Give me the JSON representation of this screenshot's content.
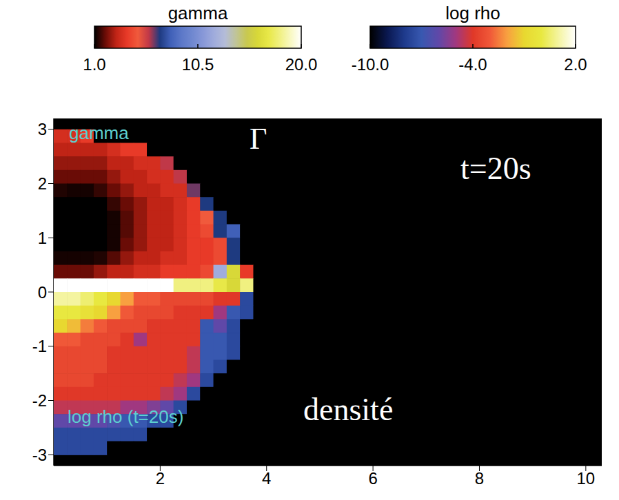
{
  "chart_data": {
    "type": "heatmap",
    "xlim": [
      0,
      10.3
    ],
    "ylim": [
      -3.2,
      3.2
    ],
    "xticks": [
      2,
      4,
      6,
      8,
      10
    ],
    "yticks": [
      -3,
      -2,
      -1,
      0,
      1,
      2,
      3
    ],
    "grid": false,
    "annotations": [
      "Γ",
      "t=20s",
      "densité"
    ],
    "x": [
      0.125,
      0.375,
      0.625,
      0.875,
      1.125,
      1.375,
      1.625,
      1.875,
      2.125,
      2.375,
      2.625,
      2.875,
      3.125,
      3.375,
      3.625,
      3.875
    ],
    "panels": [
      {
        "label": "gamma",
        "y": [
          2.875,
          2.625,
          2.375,
          2.125,
          1.875,
          1.625,
          1.375,
          1.125,
          0.875,
          0.625,
          0.375,
          0.125
        ],
        "values": [
          [
            3.5,
            3.5,
            4,
            1,
            1,
            1,
            1,
            1,
            1,
            1,
            1,
            1,
            1,
            1,
            1,
            1
          ],
          [
            3,
            3,
            3,
            3,
            3.5,
            4,
            4,
            1,
            1,
            1,
            1,
            1,
            1,
            1,
            1,
            1
          ],
          [
            2.5,
            2.5,
            2.5,
            2.5,
            3,
            3,
            3.5,
            3.5,
            6,
            1,
            1,
            1,
            1,
            1,
            1,
            1
          ],
          [
            2,
            2,
            2,
            2,
            2.5,
            3,
            3,
            3.5,
            3.5,
            6,
            1,
            1,
            1,
            1,
            1,
            1
          ],
          [
            1.3,
            1.2,
            1.2,
            1.5,
            2,
            2.5,
            3,
            3,
            3.5,
            3.5,
            6.5,
            1,
            1,
            1,
            1,
            1
          ],
          [
            1,
            1,
            1,
            1,
            1.5,
            2,
            2.5,
            3,
            3,
            3.5,
            4,
            7,
            1,
            1,
            1,
            1
          ],
          [
            1,
            1,
            1,
            1,
            1.2,
            1.8,
            2.5,
            3,
            3,
            3.5,
            4,
            5,
            7,
            1,
            1,
            1
          ],
          [
            1,
            1,
            1,
            1,
            1.2,
            1.8,
            2.5,
            3,
            3,
            3.5,
            4,
            4.5,
            7,
            8,
            1,
            1
          ],
          [
            1,
            1,
            1,
            1,
            1.2,
            2,
            2.5,
            3,
            3,
            3.5,
            4,
            4,
            4.5,
            7,
            1,
            1
          ],
          [
            1.2,
            1.2,
            1.2,
            1.3,
            1.8,
            2.5,
            3,
            3,
            3.5,
            3.5,
            4,
            4,
            4.5,
            7,
            1,
            1
          ],
          [
            2,
            2,
            2,
            2.5,
            3,
            3,
            3.5,
            3.5,
            4,
            4,
            4,
            4.5,
            12,
            16,
            4,
            1
          ],
          [
            20,
            20,
            20,
            20,
            20,
            20,
            20,
            20,
            20,
            18,
            18,
            18,
            17,
            16,
            18,
            1
          ]
        ],
        "colorbar": {
          "label": "gamma",
          "range": [
            1,
            20
          ],
          "ticks": [
            {
              "value": 1,
              "label": "1.0"
            },
            10.5,
            {
              "value": 20,
              "label": "20.0"
            }
          ],
          "colors": [
            "#000000",
            "#6a0c06",
            "#c02416",
            "#e83a28",
            "#f05a3c",
            "#c03848",
            "#1e3a80",
            "#4060b8",
            "#5c78c8",
            "#7088d0",
            "#8898d8",
            "#a0acdc",
            "#b4bcd8",
            "#c0c498",
            "#c8c850",
            "#d8d838",
            "#e8e848",
            "#f0f080",
            "#f8f8c0",
            "#ffffff"
          ]
        }
      },
      {
        "label": "log rho (t=20s)",
        "y": [
          -0.125,
          -0.375,
          -0.625,
          -0.875,
          -1.125,
          -1.375,
          -1.625,
          -1.875,
          -2.125,
          -2.375,
          -2.625,
          -2.875
        ],
        "values": [
          [
            1,
            1,
            0.5,
            0,
            -1,
            -2,
            -3,
            -3,
            -3.5,
            -3.5,
            -3.5,
            -3.5,
            -4,
            -4,
            -7.5,
            -10
          ],
          [
            0,
            0,
            -0.5,
            -1,
            -2,
            -3,
            -3.5,
            -3.5,
            -3.5,
            -4,
            -4,
            -4,
            -5,
            -7,
            -7.5,
            -10
          ],
          [
            -1,
            -1.5,
            -2.5,
            -3,
            -3.5,
            -3.5,
            -3.5,
            -4,
            -4,
            -4,
            -4,
            -7,
            -6,
            -7.5,
            -10,
            -10
          ],
          [
            -3,
            -3,
            -3.5,
            -3.5,
            -3.5,
            -4,
            -5,
            -4,
            -4,
            -4,
            -4,
            -7,
            -7,
            -7.5,
            -10,
            -10
          ],
          [
            -3.5,
            -3.5,
            -3.5,
            -3.5,
            -4,
            -4,
            -4,
            -4,
            -4,
            -4,
            -4.5,
            -7,
            -7,
            -7.5,
            -10,
            -10
          ],
          [
            -3.5,
            -3.5,
            -3.5,
            -3.5,
            -4,
            -4,
            -4,
            -4,
            -4,
            -4,
            -4.5,
            -7,
            -7.5,
            -10,
            -10,
            -10
          ],
          [
            -3.5,
            -3.5,
            -3.5,
            -4,
            -4,
            -4,
            -4,
            -4,
            -4,
            -4.5,
            -5,
            -7.5,
            -10,
            -10,
            -10,
            -10
          ],
          [
            -4,
            -4,
            -4,
            -4,
            -4,
            -4,
            -4,
            -4,
            -4.5,
            -5,
            -7.5,
            -10,
            -10,
            -10,
            -10,
            -10
          ],
          [
            -4.5,
            -4.5,
            -4.5,
            -4.5,
            -4.5,
            -5,
            -5,
            -5.5,
            -6,
            -7.5,
            -10,
            -10,
            -10,
            -10,
            -10,
            -10
          ],
          [
            -6,
            -6,
            -6,
            -6,
            -6.5,
            -7,
            -7,
            -7.5,
            -7.5,
            -10,
            -10,
            -10,
            -10,
            -10,
            -10,
            -10
          ],
          [
            -7.5,
            -7.5,
            -7.5,
            -7.5,
            -7.5,
            -7.5,
            -7.5,
            -10,
            -10,
            -10,
            -10,
            -10,
            -10,
            -10,
            -10,
            -10
          ],
          [
            -7.5,
            -7.5,
            -7.5,
            -7.5,
            -10,
            -10,
            -10,
            -10,
            -10,
            -10,
            -10,
            -10,
            -10,
            -10,
            -10,
            -10
          ]
        ],
        "colorbar": {
          "label": "log rho",
          "range": [
            -10,
            2
          ],
          "ticks": [
            {
              "value": -10,
              "label": "-10.0"
            },
            {
              "value": -4,
              "label": "-4.0"
            },
            {
              "value": 2,
              "label": "2.0"
            }
          ],
          "colors": [
            "#000000",
            "#0a1850",
            "#1e3a8c",
            "#3858b0",
            "#6048a8",
            "#a03880",
            "#e03828",
            "#f05838",
            "#f8a040",
            "#e8d830",
            "#e8e840",
            "#f4f4a0",
            "#ffffff"
          ]
        }
      }
    ]
  }
}
